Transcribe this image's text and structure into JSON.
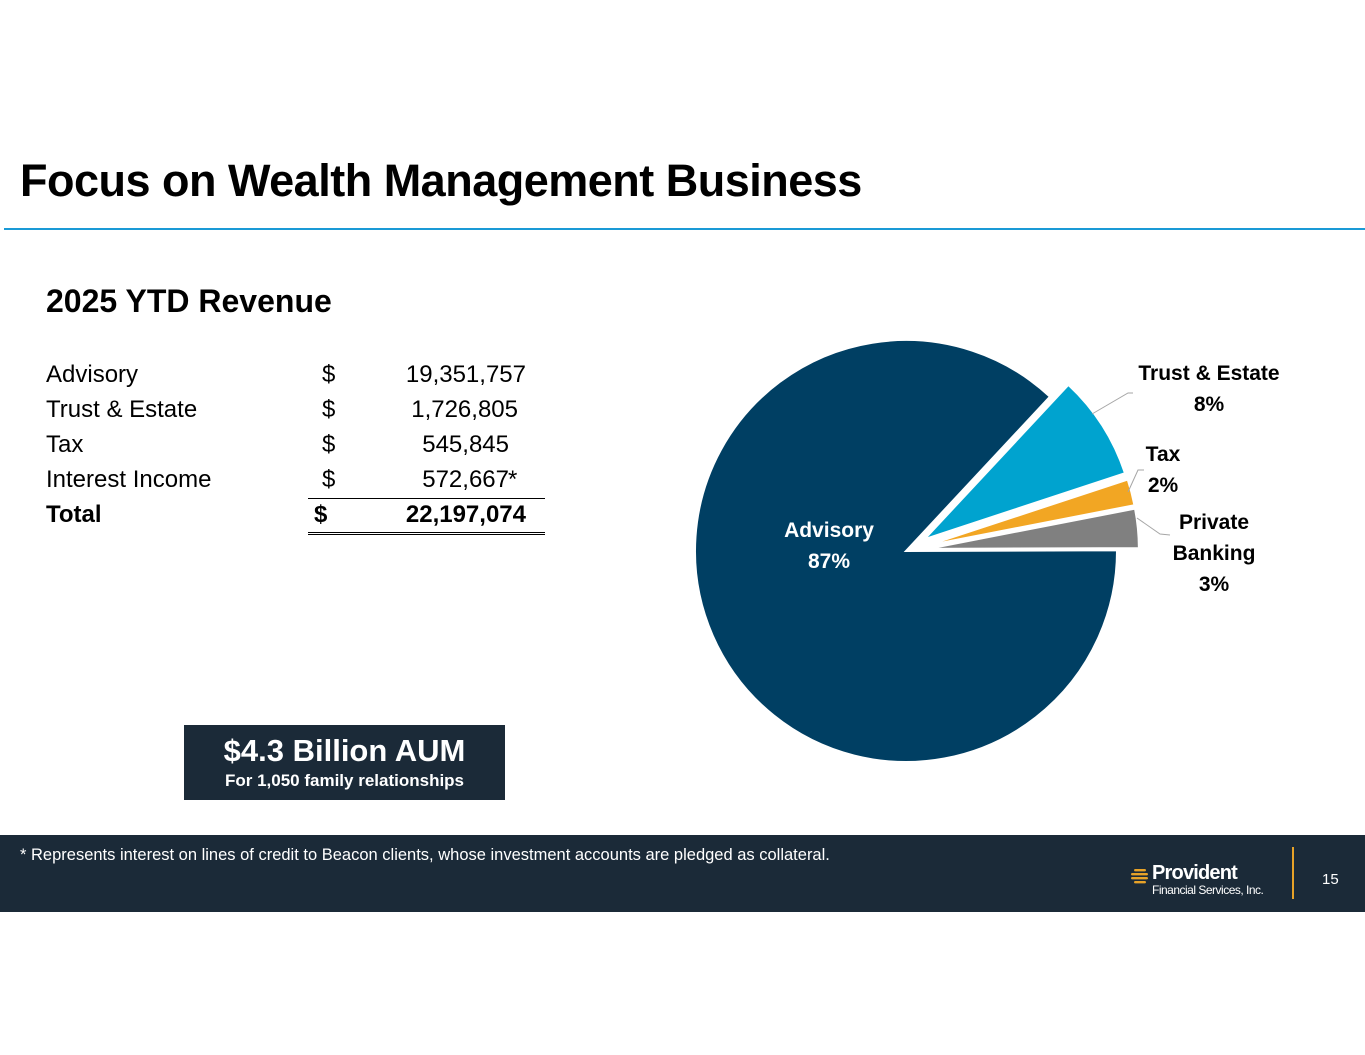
{
  "slide": {
    "title": "Focus on Wealth Management Business",
    "subtitle": "2025 YTD Revenue"
  },
  "revenue_table": {
    "rows": [
      {
        "label": "Advisory",
        "currency": "$",
        "amount": "19,351,757",
        "note": ""
      },
      {
        "label": "Trust & Estate",
        "currency": "$",
        "amount": "1,726,805",
        "note": ""
      },
      {
        "label": "Tax",
        "currency": "$",
        "amount": "545,845",
        "note": ""
      },
      {
        "label": "Interest Income",
        "currency": "$",
        "amount": "572,667",
        "note": "*"
      }
    ],
    "total": {
      "label": "Total",
      "currency": "$",
      "amount": "22,197,074"
    }
  },
  "aum_box": {
    "headline": "$4.3 Billion AUM",
    "subline": "For 1,050 family relationships"
  },
  "chart_data": {
    "type": "pie",
    "title": "",
    "slices": [
      {
        "name": "Advisory",
        "value": 87,
        "label_line1": "Advisory",
        "label_line2": "",
        "label_pct": "87%",
        "color": "#003f63",
        "exploded": false
      },
      {
        "name": "Trust & Estate",
        "value": 8,
        "label_line1": "Trust & Estate",
        "label_line2": "",
        "label_pct": "8%",
        "color": "#00a3cf",
        "exploded": true
      },
      {
        "name": "Tax",
        "value": 2,
        "label_line1": "Tax",
        "label_line2": "",
        "label_pct": "2%",
        "color": "#f2a623",
        "exploded": true
      },
      {
        "name": "Private Banking",
        "value": 3,
        "label_line1": "Private",
        "label_line2": "Banking",
        "label_pct": "3%",
        "color": "#808080",
        "exploded": true
      }
    ]
  },
  "footer": {
    "footnote": "* Represents interest on lines of credit to Beacon clients, whose investment accounts are pledged as collateral.",
    "logo_name": "Provident",
    "logo_sub": "Financial Services, Inc.",
    "page_number": "15"
  },
  "colors": {
    "accent_rule": "#1a9ad6",
    "footer_bg": "#1b2a38",
    "logo_gold": "#e7a228"
  }
}
